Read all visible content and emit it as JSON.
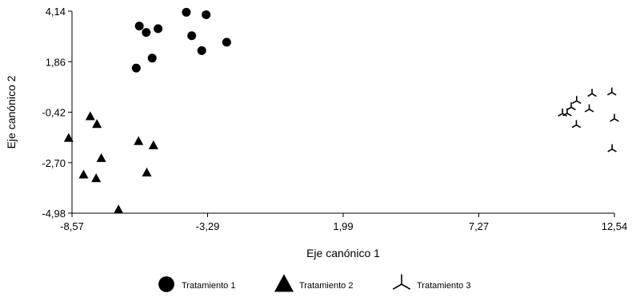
{
  "chart_data": {
    "type": "scatter",
    "xlabel": "Eje canónico 1",
    "ylabel": "Eje canónico 2",
    "x_ticks": [
      "-8,57",
      "-3,29",
      "1,99",
      "7,27",
      "12,54"
    ],
    "y_ticks": [
      "4,14",
      "1,86",
      "-0,42",
      "-2,70",
      "-4,98"
    ],
    "xlim": [
      -8.57,
      12.54
    ],
    "ylim": [
      -4.98,
      4.14
    ],
    "grid": false,
    "legend_position": "bottom",
    "series": [
      {
        "name": "Tratamiento 1",
        "marker": "circle",
        "color": "#000000",
        "points": [
          [
            -5.95,
            3.47
          ],
          [
            -5.68,
            3.18
          ],
          [
            -5.22,
            3.35
          ],
          [
            -4.12,
            4.09
          ],
          [
            -3.35,
            3.98
          ],
          [
            -3.91,
            3.03
          ],
          [
            -3.52,
            2.36
          ],
          [
            -5.45,
            2.02
          ],
          [
            -6.07,
            1.57
          ],
          [
            -2.55,
            2.74
          ]
        ]
      },
      {
        "name": "Tratamiento 2",
        "marker": "triangle",
        "color": "#000000",
        "points": [
          [
            -8.7,
            -1.59
          ],
          [
            -7.86,
            -0.61
          ],
          [
            -7.6,
            -0.96
          ],
          [
            -5.98,
            -1.73
          ],
          [
            -5.4,
            -1.92
          ],
          [
            -7.43,
            -2.5
          ],
          [
            -8.12,
            -3.24
          ],
          [
            -7.63,
            -3.41
          ],
          [
            -5.66,
            -3.15
          ],
          [
            -6.76,
            -4.82
          ]
        ]
      },
      {
        "name": "Tratamiento 3",
        "marker": "tri-star",
        "color": "#000000",
        "points": [
          [
            11.07,
            0.09
          ],
          [
            11.67,
            0.41
          ],
          [
            12.44,
            0.47
          ],
          [
            10.52,
            -0.48
          ],
          [
            10.7,
            -0.47
          ],
          [
            10.86,
            -0.2
          ],
          [
            11.56,
            -0.29
          ],
          [
            12.54,
            -0.72
          ],
          [
            11.06,
            -1.0
          ],
          [
            12.45,
            -2.09
          ]
        ]
      }
    ]
  }
}
